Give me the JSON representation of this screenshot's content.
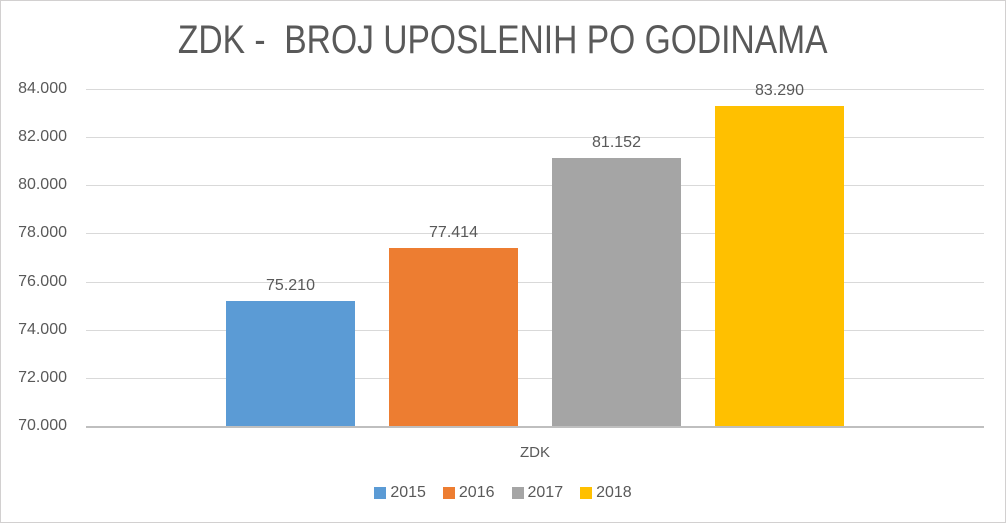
{
  "chart_data": {
    "type": "bar",
    "title": "ZDK -  BROJ UPOSLENIH PO GODINAMA",
    "categories": [
      "ZDK"
    ],
    "xlabel": "ZDK",
    "ylim": [
      70000,
      84000
    ],
    "ytick_step": 2000,
    "yticks": [
      {
        "value": 70000,
        "label": "70.000"
      },
      {
        "value": 72000,
        "label": "72.000"
      },
      {
        "value": 74000,
        "label": "74.000"
      },
      {
        "value": 76000,
        "label": "76.000"
      },
      {
        "value": 78000,
        "label": "78.000"
      },
      {
        "value": 80000,
        "label": "80.000"
      },
      {
        "value": 82000,
        "label": "82.000"
      },
      {
        "value": 84000,
        "label": "84.000"
      }
    ],
    "series": [
      {
        "name": "2015",
        "values": [
          75210
        ],
        "data_labels": [
          "75.210"
        ],
        "color": "#5B9BD5"
      },
      {
        "name": "2016",
        "values": [
          77414
        ],
        "data_labels": [
          "77.414"
        ],
        "color": "#ED7D31"
      },
      {
        "name": "2017",
        "values": [
          81152
        ],
        "data_labels": [
          "81.152"
        ],
        "color": "#A5A5A5"
      },
      {
        "name": "2018",
        "values": [
          83290
        ],
        "data_labels": [
          "83.290"
        ],
        "color": "#FFC000"
      }
    ],
    "grid": true,
    "legend_position": "bottom"
  },
  "style": {
    "background": "#FFFFFF",
    "text_color": "#595959",
    "gridline_color": "#D9D9D9",
    "axis_line_color": "#BFBFBF",
    "border_color": "#D2D0D0"
  }
}
